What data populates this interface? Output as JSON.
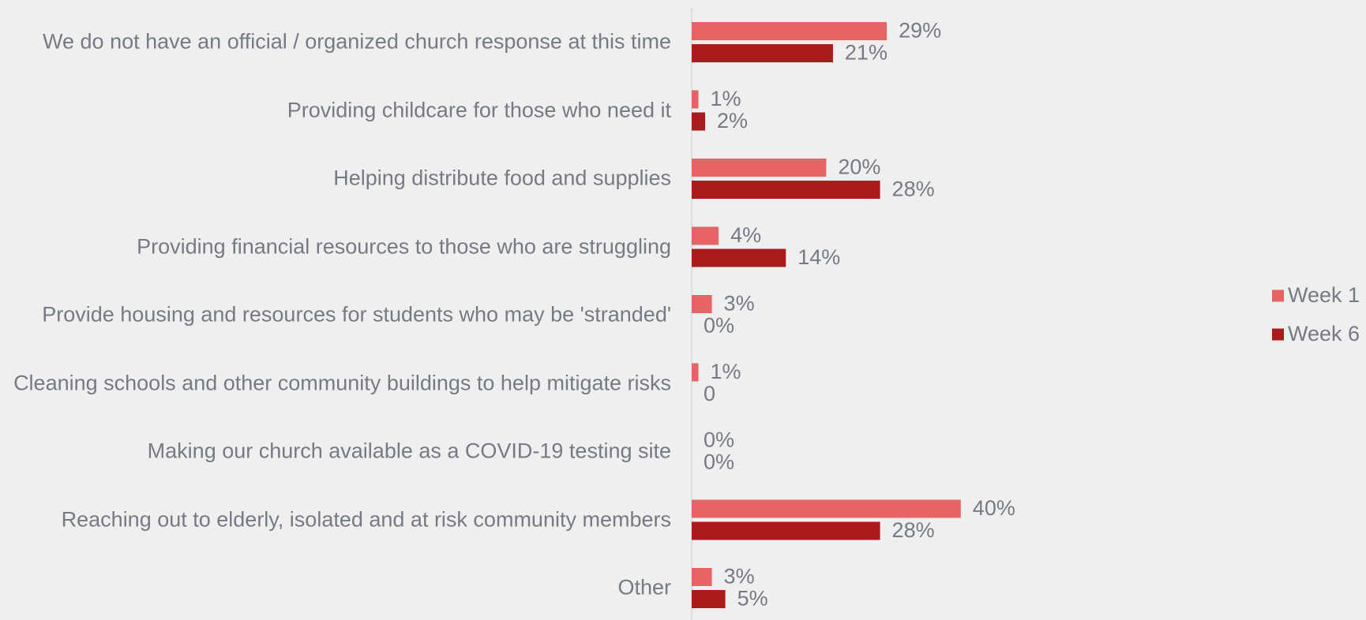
{
  "chart_data": {
    "type": "bar",
    "orientation": "horizontal",
    "categories": [
      "We do not have an official / organized church response at this time",
      "Providing childcare for those who need it",
      "Helping distribute food and supplies",
      "Providing financial resources to those who are struggling",
      "Provide housing and resources for students who may be 'stranded'",
      "Cleaning schools and other community buildings to help mitigate risks",
      "Making our church available as a COVID-19 testing site",
      "Reaching out to elderly, isolated and at risk community members",
      "Other"
    ],
    "series": [
      {
        "name": "Week 1",
        "color": "#e66465",
        "values": [
          29,
          1,
          20,
          4,
          3,
          1,
          0,
          40,
          3
        ],
        "value_labels": [
          "29%",
          "1%",
          "20%",
          "4%",
          "3%",
          "1%",
          "0%",
          "40%",
          "3%"
        ]
      },
      {
        "name": "Week 6",
        "color": "#a91b1d",
        "values": [
          21,
          2,
          28,
          14,
          0,
          0,
          0,
          28,
          5
        ],
        "value_labels": [
          "21%",
          "2%",
          "28%",
          "14%",
          "0%",
          "0",
          "0%",
          "28%",
          "5%"
        ]
      }
    ],
    "xlim": [
      0,
      100
    ],
    "legend": "right"
  }
}
